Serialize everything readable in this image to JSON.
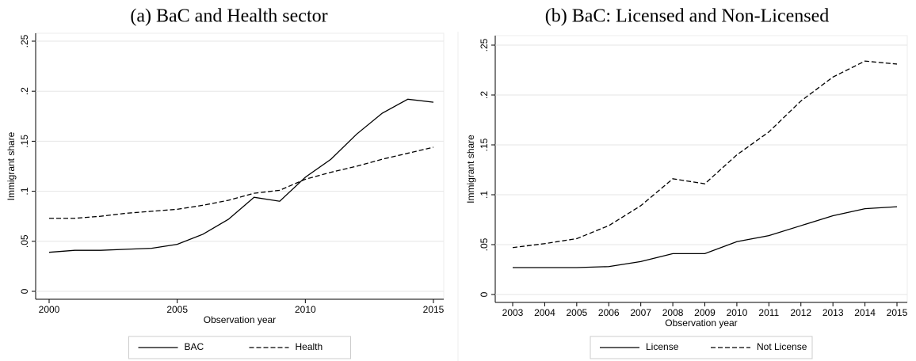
{
  "chart_data": [
    {
      "type": "line",
      "title": "(a) BaC and Health sector",
      "xlabel": "Observation year",
      "ylabel": "Immigrant share",
      "x": [
        2000,
        2001,
        2002,
        2003,
        2004,
        2005,
        2006,
        2007,
        2008,
        2009,
        2010,
        2011,
        2012,
        2013,
        2014,
        2015
      ],
      "xlim": [
        2000,
        2015
      ],
      "xticks": [
        2000,
        2005,
        2010,
        2015
      ],
      "ylim": [
        0,
        0.25
      ],
      "yticks": [
        0,
        {
          "value": 0.05,
          "label": ".05"
        },
        {
          "value": 0.1,
          "label": ".1"
        },
        {
          "value": 0.15,
          "label": ".15"
        },
        {
          "value": 0.2,
          "label": ".2"
        },
        {
          "value": 0.25,
          "label": ".25"
        }
      ],
      "grid": true,
      "legend": "bottom",
      "series": [
        {
          "name": "BAC",
          "color": "#000000",
          "line_style": "solid",
          "values": [
            0.039,
            0.041,
            0.041,
            0.042,
            0.043,
            0.047,
            0.057,
            0.072,
            0.094,
            0.09,
            0.114,
            0.132,
            0.157,
            0.178,
            0.192,
            0.189
          ]
        },
        {
          "name": "Health",
          "color": "#000000",
          "line_style": "dashed",
          "values": [
            0.073,
            0.073,
            0.075,
            0.078,
            0.08,
            0.082,
            0.086,
            0.091,
            0.098,
            0.101,
            0.112,
            0.119,
            0.125,
            0.132,
            0.138,
            0.144
          ]
        }
      ]
    },
    {
      "type": "line",
      "title": "(b) BaC: Licensed and Non-Licensed",
      "xlabel": "Observation year",
      "ylabel": "Immigrant share",
      "x": [
        2003,
        2004,
        2005,
        2006,
        2007,
        2008,
        2009,
        2010,
        2011,
        2012,
        2013,
        2014,
        2015
      ],
      "xlim": [
        2003,
        2015
      ],
      "xticks": [
        2003,
        2004,
        2005,
        2006,
        2007,
        2008,
        2009,
        2010,
        2011,
        2012,
        2013,
        2014,
        2015
      ],
      "ylim": [
        0,
        0.25
      ],
      "yticks": [
        0,
        {
          "value": 0.05,
          "label": ".05"
        },
        {
          "value": 0.1,
          "label": ".1"
        },
        {
          "value": 0.15,
          "label": ".15"
        },
        {
          "value": 0.2,
          "label": ".2"
        },
        {
          "value": 0.25,
          "label": ".25"
        }
      ],
      "grid": true,
      "legend": "bottom",
      "series": [
        {
          "name": "License",
          "color": "#000000",
          "line_style": "solid",
          "values": [
            0.027,
            0.027,
            0.027,
            0.028,
            0.033,
            0.041,
            0.041,
            0.053,
            0.059,
            0.069,
            0.079,
            0.086,
            0.088
          ]
        },
        {
          "name": "Not License",
          "color": "#000000",
          "line_style": "dashed",
          "values": [
            0.047,
            0.051,
            0.056,
            0.069,
            0.089,
            0.116,
            0.111,
            0.14,
            0.163,
            0.194,
            0.218,
            0.234,
            0.231
          ]
        }
      ]
    }
  ]
}
